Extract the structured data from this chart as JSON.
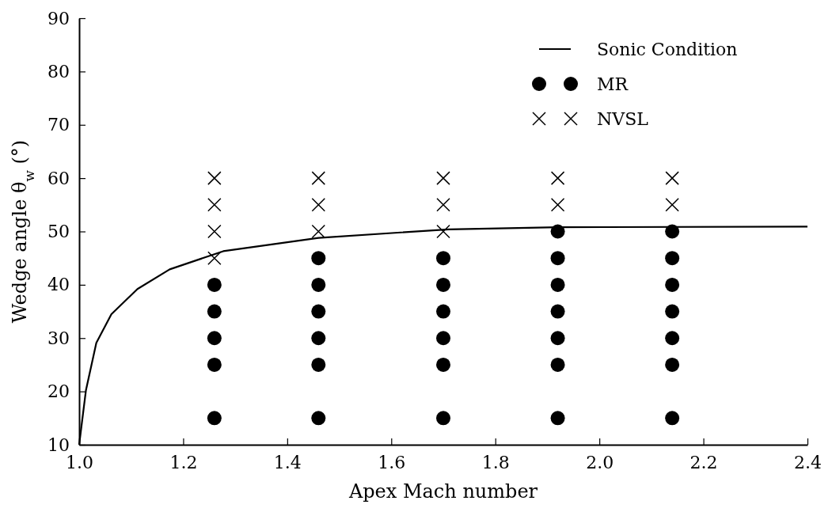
{
  "chart_data": {
    "type": "scatter",
    "xlabel": "Apex Mach number",
    "ylabel": "Wedge angle θ$_{w}$ (°)",
    "xlim": [
      1.0,
      2.4
    ],
    "xticks": [
      {
        "value": 1.0,
        "label": "1.0"
      },
      1.2,
      1.4,
      1.6,
      1.8,
      {
        "value": 2.0,
        "label": "2.0"
      },
      2.2,
      2.4
    ],
    "ylim": [
      10,
      90
    ],
    "yticks": [
      10,
      20,
      30,
      40,
      50,
      60,
      70,
      80,
      90
    ],
    "grid": false,
    "legend": "top right",
    "series": [
      {
        "name": "Sonic Condition",
        "type": "line",
        "color": "#000000",
        "marker": "none",
        "line_style": "solid",
        "x": [
          1.0,
          1.013,
          1.033,
          1.062,
          1.112,
          1.174,
          1.277,
          1.46,
          1.71,
          1.92,
          2.4
        ],
        "values": [
          10,
          20.2,
          29.1,
          34.5,
          39.2,
          42.9,
          46.3,
          48.8,
          50.4,
          50.8,
          50.9
        ]
      },
      {
        "name": "MR",
        "color": "#000000",
        "marker": "circle",
        "x": [
          1.26,
          1.26,
          1.26,
          1.26,
          1.26,
          1.46,
          1.46,
          1.46,
          1.46,
          1.46,
          1.46,
          1.7,
          1.7,
          1.7,
          1.7,
          1.7,
          1.7,
          1.92,
          1.92,
          1.92,
          1.92,
          1.92,
          1.92,
          1.92,
          2.14,
          2.14,
          2.14,
          2.14,
          2.14,
          2.14,
          2.14
        ],
        "values": [
          15,
          25,
          30,
          35,
          40,
          15,
          25,
          30,
          35,
          40,
          45,
          15,
          25,
          30,
          35,
          40,
          45,
          15,
          25,
          30,
          35,
          40,
          45,
          50,
          15,
          25,
          30,
          35,
          40,
          45,
          50
        ]
      },
      {
        "name": "NVSL",
        "color": "#000000",
        "marker": "cross",
        "x": [
          1.26,
          1.26,
          1.26,
          1.26,
          1.46,
          1.46,
          1.46,
          1.7,
          1.7,
          1.7,
          1.92,
          1.92,
          2.14,
          2.14
        ],
        "values": [
          45,
          50,
          55,
          60,
          50,
          55,
          60,
          50,
          55,
          60,
          55,
          60,
          55,
          60
        ]
      }
    ]
  }
}
